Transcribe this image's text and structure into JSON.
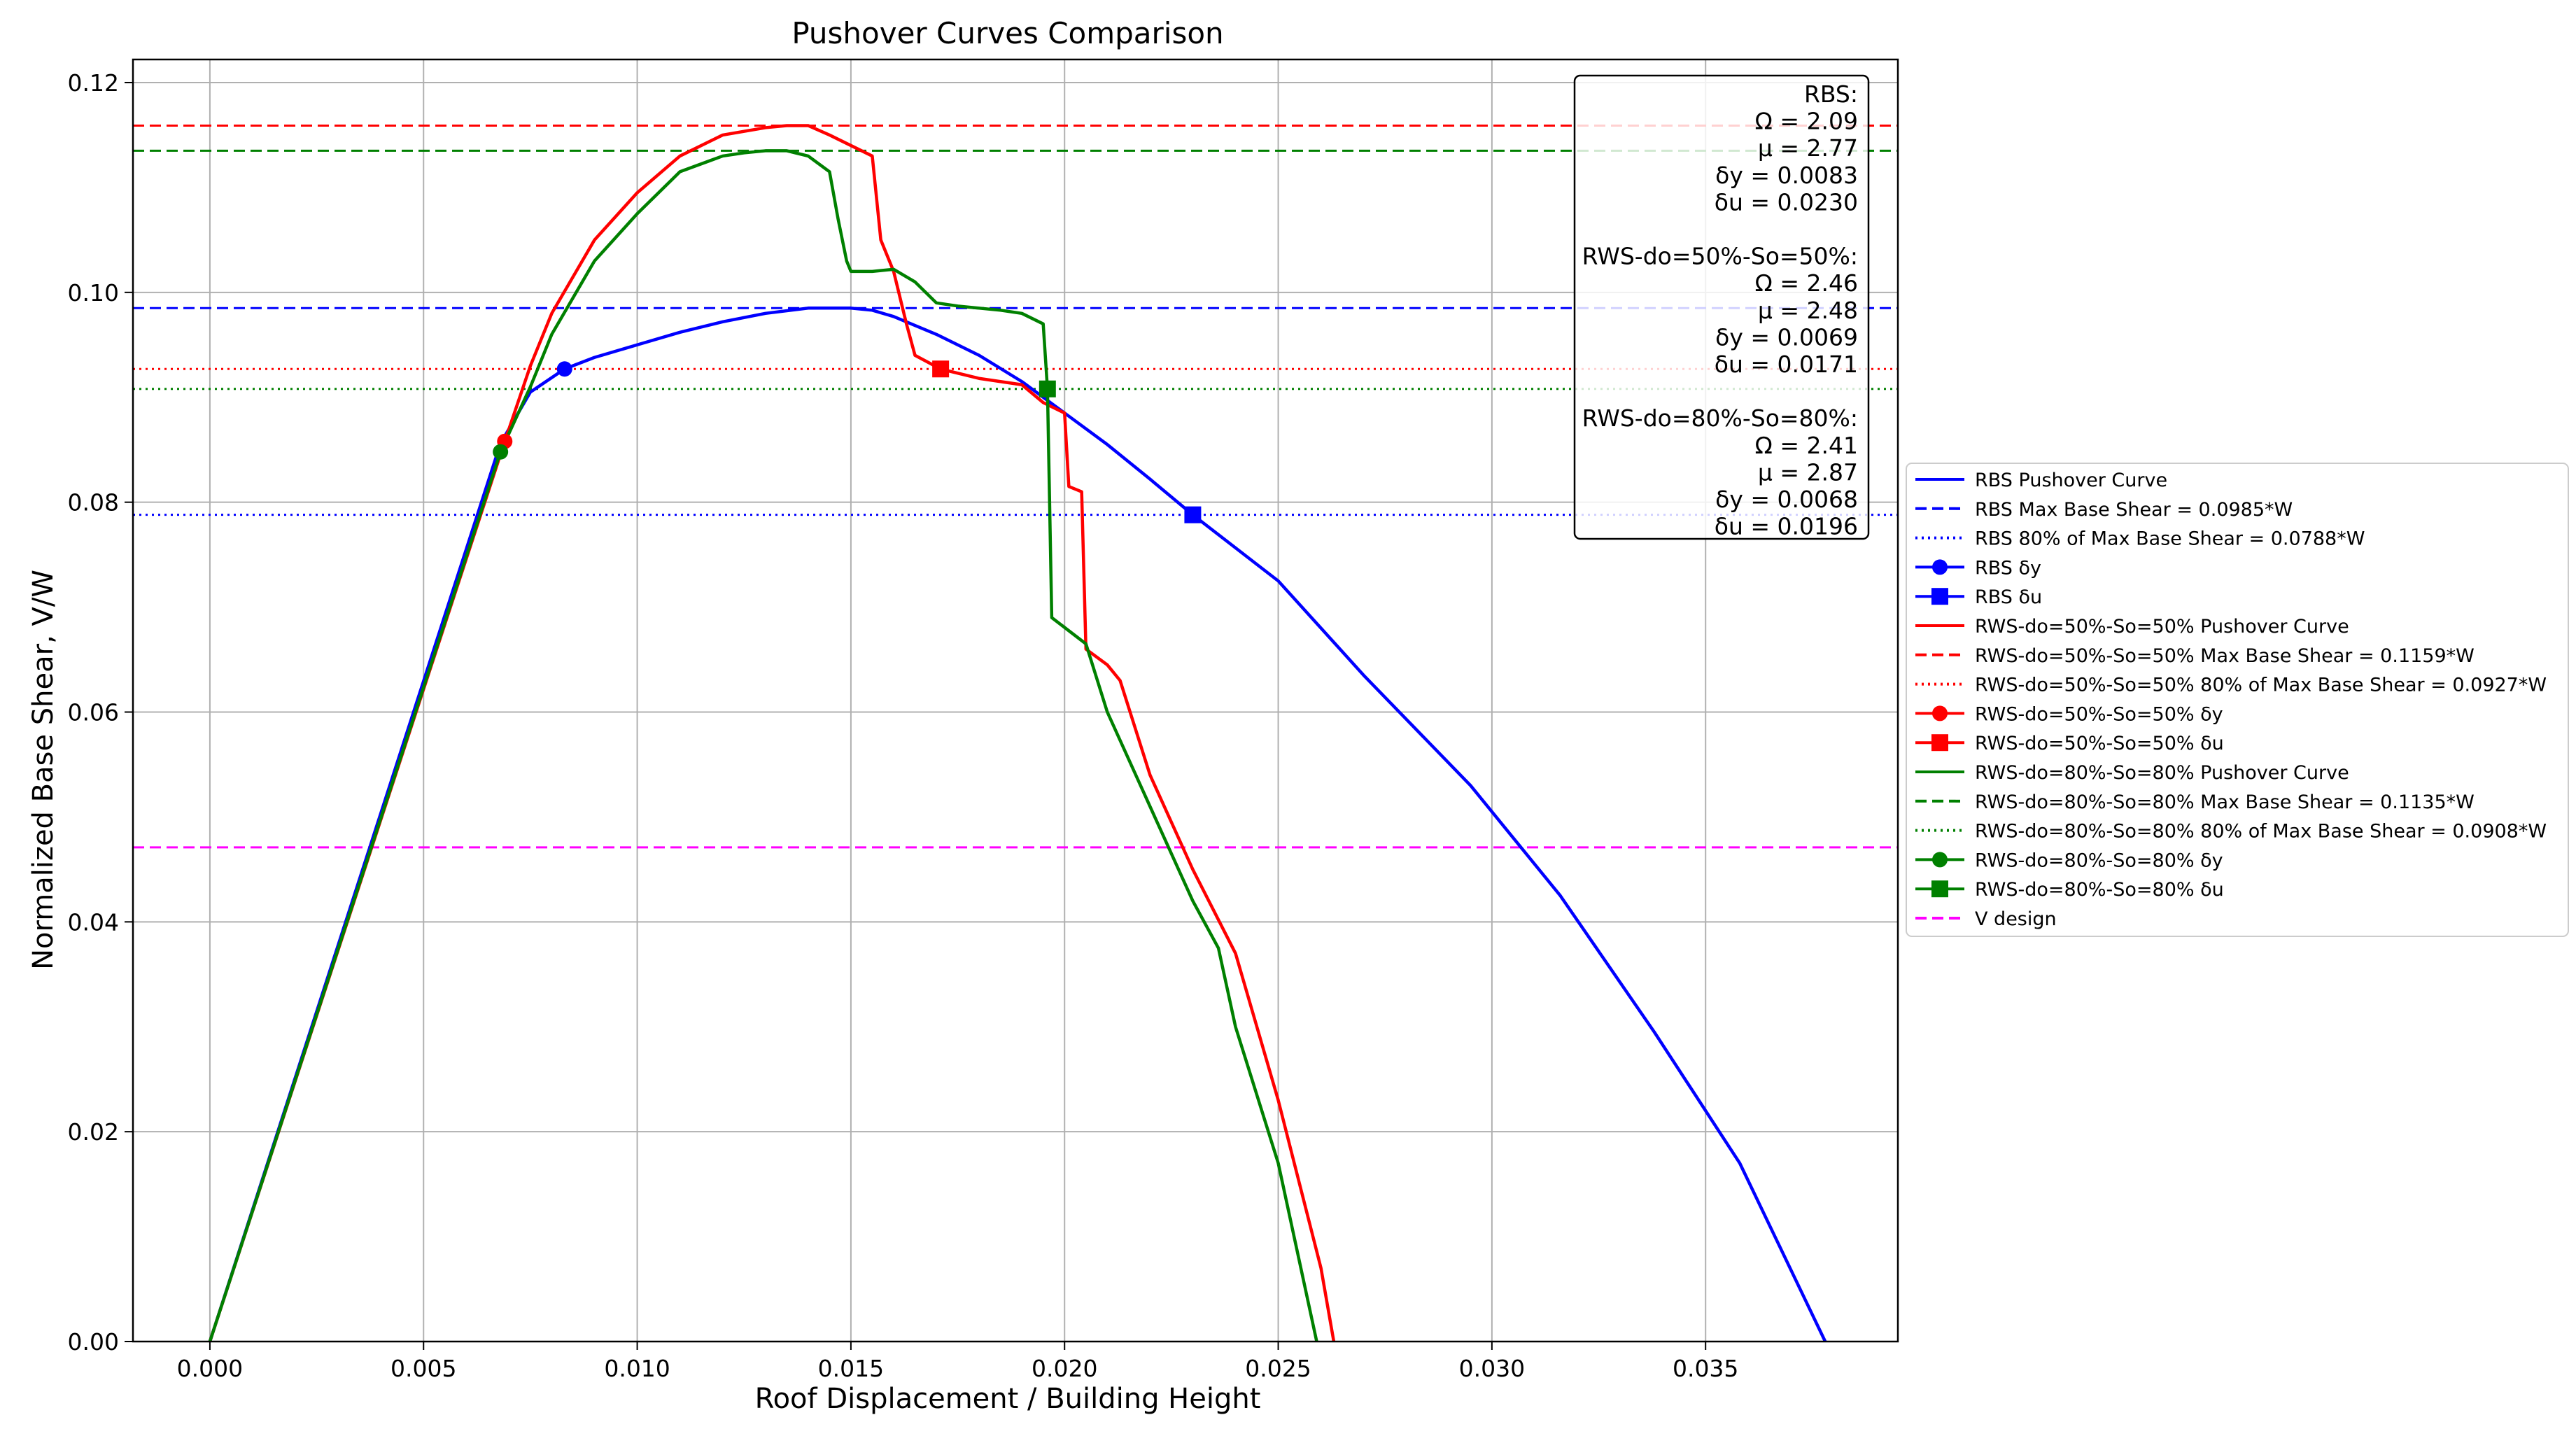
{
  "chart_data": {
    "type": "line",
    "title": "Pushover Curves Comparison",
    "xlabel": "Roof Displacement / Building Height",
    "ylabel": "Normalized Base Shear, V/W",
    "xlim": [
      -0.0018,
      0.0395
    ],
    "ylim": [
      0.0,
      0.1222
    ],
    "grid": true,
    "x_ticks": [
      0.0,
      0.005,
      0.01,
      0.015,
      0.02,
      0.025,
      0.03,
      0.035
    ],
    "x_tick_labels": [
      "0.000",
      "0.005",
      "0.010",
      "0.015",
      "0.020",
      "0.025",
      "0.030",
      "0.035"
    ],
    "y_ticks": [
      0.0,
      0.02,
      0.04,
      0.06,
      0.08,
      0.1,
      0.12
    ],
    "y_tick_labels": [
      "0.00",
      "0.02",
      "0.04",
      "0.06",
      "0.08",
      "0.10",
      "0.12"
    ],
    "legend_position": "outside-right",
    "series": [
      {
        "name": "RBS Pushover Curve",
        "color": "#0000ff",
        "style": "solid",
        "x": [
          0.0,
          0.0068,
          0.0075,
          0.0083,
          0.009,
          0.01,
          0.011,
          0.012,
          0.013,
          0.014,
          0.015,
          0.0155,
          0.016,
          0.017,
          0.018,
          0.019,
          0.02,
          0.021,
          0.022,
          0.023,
          0.025,
          0.027,
          0.0295,
          0.0316,
          0.0338,
          0.0358,
          0.0378
        ],
        "y": [
          0.0,
          0.0856,
          0.0905,
          0.0927,
          0.0938,
          0.095,
          0.0962,
          0.0972,
          0.098,
          0.0985,
          0.0985,
          0.0983,
          0.0977,
          0.096,
          0.094,
          0.0915,
          0.0885,
          0.0855,
          0.0822,
          0.0788,
          0.0725,
          0.0635,
          0.053,
          0.0425,
          0.0295,
          0.017,
          0.0
        ]
      },
      {
        "name": "RBS Max Base Shear = 0.0985*W",
        "color": "#0000ff",
        "style": "dashed",
        "hline": 0.0985
      },
      {
        "name": "RBS 80% of Max Base Shear = 0.0788*W",
        "color": "#0000ff",
        "style": "dotted",
        "hline": 0.0788
      },
      {
        "name": "RBS δy",
        "color": "#0000ff",
        "marker": "circle",
        "x": [
          0.0083
        ],
        "y": [
          0.0927
        ]
      },
      {
        "name": "RBS δu",
        "color": "#0000ff",
        "marker": "square",
        "x": [
          0.023
        ],
        "y": [
          0.0788
        ]
      },
      {
        "name": "RWS-do=50%-So=50% Pushover Curve",
        "color": "#ff0000",
        "style": "solid",
        "x": [
          0.0,
          0.0069,
          0.0075,
          0.008,
          0.009,
          0.01,
          0.011,
          0.012,
          0.013,
          0.0135,
          0.014,
          0.0145,
          0.015,
          0.0155,
          0.0157,
          0.016,
          0.0163,
          0.0165,
          0.0171,
          0.018,
          0.019,
          0.0195,
          0.02,
          0.0201,
          0.0204,
          0.0205,
          0.021,
          0.0213,
          0.022,
          0.023,
          0.024,
          0.025,
          0.026,
          0.0263
        ],
        "y": [
          0.0,
          0.0858,
          0.093,
          0.098,
          0.105,
          0.1095,
          0.113,
          0.115,
          0.1157,
          0.1159,
          0.1159,
          0.115,
          0.114,
          0.113,
          0.105,
          0.102,
          0.097,
          0.094,
          0.0927,
          0.0918,
          0.0912,
          0.0895,
          0.0885,
          0.0815,
          0.081,
          0.066,
          0.0645,
          0.063,
          0.054,
          0.045,
          0.037,
          0.023,
          0.007,
          0.0
        ]
      },
      {
        "name": "RWS-do=50%-So=50% Max Base Shear = 0.1159*W",
        "color": "#ff0000",
        "style": "dashed",
        "hline": 0.1159
      },
      {
        "name": "RWS-do=50%-So=50% 80% of Max Base Shear = 0.0927*W",
        "color": "#ff0000",
        "style": "dotted",
        "hline": 0.0927
      },
      {
        "name": "RWS-do=50%-So=50% δy",
        "color": "#ff0000",
        "marker": "circle",
        "x": [
          0.0069
        ],
        "y": [
          0.0858
        ]
      },
      {
        "name": "RWS-do=50%-So=50% δu",
        "color": "#ff0000",
        "marker": "square",
        "x": [
          0.0171
        ],
        "y": [
          0.0927
        ]
      },
      {
        "name": "RWS-do=80%-So=80% Pushover Curve",
        "color": "#008000",
        "style": "solid",
        "x": [
          0.0,
          0.0068,
          0.0075,
          0.008,
          0.009,
          0.01,
          0.011,
          0.012,
          0.0125,
          0.013,
          0.0135,
          0.014,
          0.0145,
          0.0147,
          0.0149,
          0.015,
          0.0155,
          0.016,
          0.0165,
          0.017,
          0.0175,
          0.018,
          0.0185,
          0.019,
          0.0195,
          0.0196,
          0.0197,
          0.0205,
          0.021,
          0.022,
          0.023,
          0.0236,
          0.024,
          0.025,
          0.0259
        ],
        "y": [
          0.0,
          0.0848,
          0.091,
          0.096,
          0.103,
          0.1075,
          0.1115,
          0.113,
          0.1133,
          0.1135,
          0.1135,
          0.113,
          0.1115,
          0.107,
          0.103,
          0.102,
          0.102,
          0.1022,
          0.101,
          0.099,
          0.0987,
          0.0985,
          0.0983,
          0.098,
          0.097,
          0.0908,
          0.069,
          0.0665,
          0.06,
          0.051,
          0.042,
          0.0375,
          0.03,
          0.017,
          0.0
        ]
      },
      {
        "name": "RWS-do=80%-So=80% Max Base Shear = 0.1135*W",
        "color": "#008000",
        "style": "dashed",
        "hline": 0.1135
      },
      {
        "name": "RWS-do=80%-So=80% 80% of Max Base Shear = 0.0908*W",
        "color": "#008000",
        "style": "dotted",
        "hline": 0.0908
      },
      {
        "name": "RWS-do=80%-So=80% δy",
        "color": "#008000",
        "marker": "circle",
        "x": [
          0.0068
        ],
        "y": [
          0.0848
        ]
      },
      {
        "name": "RWS-do=80%-So=80% δu",
        "color": "#008000",
        "marker": "square",
        "x": [
          0.0196
        ],
        "y": [
          0.0908
        ]
      },
      {
        "name": "V design",
        "color": "#ff00ff",
        "style": "dashed",
        "hline": 0.0471
      }
    ],
    "annotation": [
      "RBS:",
      "Ω = 2.09",
      "μ = 2.77",
      "δy = 0.0083",
      "δu = 0.0230",
      "",
      "RWS-do=50%-So=50%:",
      "Ω = 2.46",
      "μ = 2.48",
      "δy = 0.0069",
      "δu = 0.0171",
      "",
      "RWS-do=80%-So=80%:",
      "Ω = 2.41",
      "μ = 2.87",
      "δy = 0.0068",
      "δu = 0.0196"
    ]
  }
}
